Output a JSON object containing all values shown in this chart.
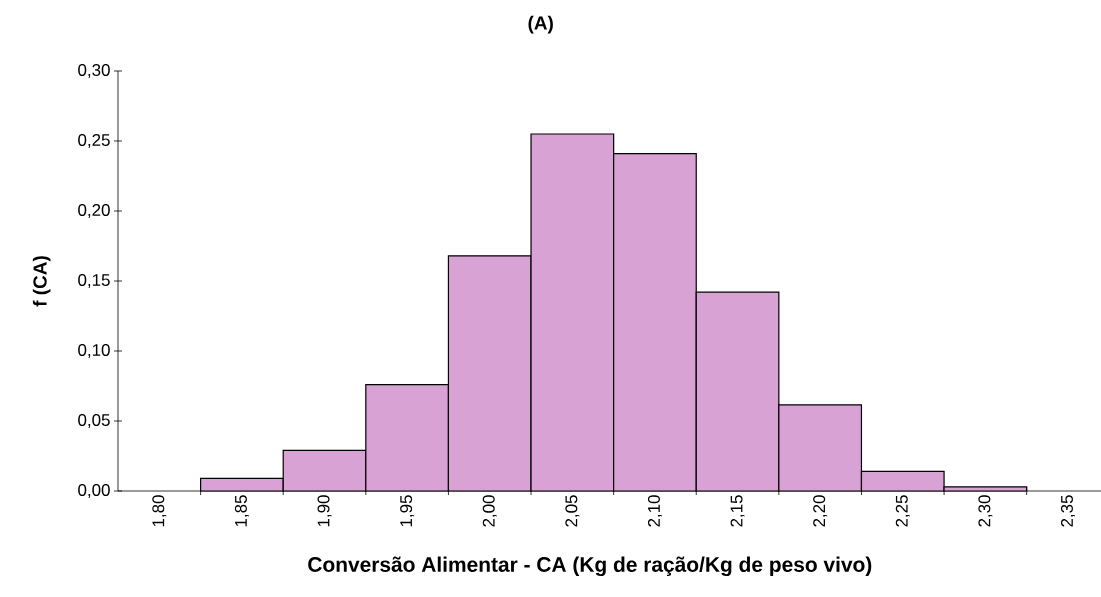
{
  "chart_data": {
    "type": "histogram",
    "title": "(A)",
    "xlabel": "Conversão Alimentar - CA (Kg de ração/Kg de peso vivo)",
    "ylabel": "f (CA)",
    "bins": [
      1.825,
      1.875,
      1.925,
      1.975,
      2.025,
      2.075,
      2.125,
      2.175,
      2.225,
      2.275,
      2.325
    ],
    "values": [
      0.009,
      0.029,
      0.076,
      0.168,
      0.255,
      0.241,
      0.142,
      0.0615,
      0.014,
      0.003
    ],
    "color": "#d8a2d4",
    "xlim": [
      1.775,
      2.37
    ],
    "ylim": [
      0,
      0.3
    ],
    "xticks": [
      {
        "value": 1.8,
        "label": "1,80"
      },
      {
        "value": 1.85,
        "label": "1,85"
      },
      {
        "value": 1.9,
        "label": "1,90"
      },
      {
        "value": 1.95,
        "label": "1,95"
      },
      {
        "value": 2.0,
        "label": "2,00"
      },
      {
        "value": 2.05,
        "label": "2,05"
      },
      {
        "value": 2.1,
        "label": "2,10"
      },
      {
        "value": 2.15,
        "label": "2,15"
      },
      {
        "value": 2.2,
        "label": "2,20"
      },
      {
        "value": 2.25,
        "label": "2,25"
      },
      {
        "value": 2.3,
        "label": "2,30"
      },
      {
        "value": 2.35,
        "label": "2,35"
      },
      {
        "value": 1.825,
        "label": null
      },
      {
        "value": 1.875,
        "label": null
      },
      {
        "value": 1.925,
        "label": null
      },
      {
        "value": 1.975,
        "label": null
      },
      {
        "value": 2.025,
        "label": null
      },
      {
        "value": 2.075,
        "label": null
      },
      {
        "value": 2.125,
        "label": null
      },
      {
        "value": 2.175,
        "label": null
      },
      {
        "value": 2.225,
        "label": null
      },
      {
        "value": 2.275,
        "label": null
      },
      {
        "value": 2.325,
        "label": null
      }
    ],
    "yticks": [
      {
        "value": 0,
        "label": "0,00"
      },
      {
        "value": 0.05,
        "label": "0,05"
      },
      {
        "value": 0.1,
        "label": "0,10"
      },
      {
        "value": 0.15,
        "label": "0,15"
      },
      {
        "value": 0.2,
        "label": "0,20"
      },
      {
        "value": 0.25,
        "label": "0,25"
      },
      {
        "value": 0.3,
        "label": "0,30"
      }
    ]
  }
}
